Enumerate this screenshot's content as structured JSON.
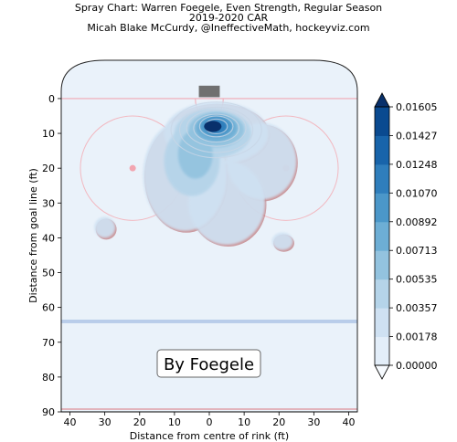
{
  "titles": {
    "line1": "Spray Chart: Warren Foegele, Even Strength, Regular Season",
    "line2": "2019-2020 CAR",
    "line3": "Micah Blake McCurdy, @IneffectiveMath, hockeyviz.com"
  },
  "chart_data": {
    "type": "heatmap",
    "xlabel": "Distance from centre of rink (ft)",
    "ylabel": "Distance from goal line (ft)",
    "xlim": [
      -42.5,
      42.5
    ],
    "ylim": [
      -11,
      90
    ],
    "x_ticks": [
      -40,
      -30,
      -20,
      -10,
      0,
      10,
      20,
      30,
      40
    ],
    "x_tick_labels": [
      "40",
      "30",
      "20",
      "10",
      "0",
      "10",
      "20",
      "30",
      "40"
    ],
    "y_ticks": [
      0,
      10,
      20,
      30,
      40,
      50,
      60,
      70,
      80,
      90
    ],
    "y_tick_labels": [
      "0",
      "10",
      "20",
      "30",
      "40",
      "50",
      "60",
      "70",
      "80",
      "90"
    ],
    "colorbar": {
      "ticks": [
        0.0,
        0.00178,
        0.00357,
        0.00535,
        0.00713,
        0.00892,
        0.0107,
        0.01248,
        0.01427,
        0.01605
      ],
      "tick_labels": [
        "0.00000",
        "0.00178",
        "0.00357",
        "0.00535",
        "0.00713",
        "0.00892",
        "0.01070",
        "0.01248",
        "0.01427",
        "0.01605"
      ],
      "colors": [
        "#f7fbff",
        "#e3eef9",
        "#cfe1f2",
        "#b5d4e9",
        "#93c3df",
        "#6daed5",
        "#4b97c9",
        "#2f7ebc",
        "#1864aa",
        "#0a4a90",
        "#08306b"
      ]
    },
    "annotation": "By Foegele",
    "hotspot": {
      "x": 1,
      "y": 8,
      "peak_density": 0.01605
    },
    "density_blobs": [
      {
        "x": 2,
        "y": 10,
        "rx": 15,
        "ry": 9,
        "level": 1
      },
      {
        "x": -7,
        "y": 22,
        "rx": 12,
        "ry": 16,
        "level": 1
      },
      {
        "x": 15,
        "y": 18,
        "rx": 10,
        "ry": 11,
        "level": 1
      },
      {
        "x": 5,
        "y": 30,
        "rx": 11,
        "ry": 12,
        "level": 1
      },
      {
        "x": 1,
        "y": 10,
        "rx": 11,
        "ry": 7,
        "level": 2
      },
      {
        "x": -5,
        "y": 18,
        "rx": 8,
        "ry": 10,
        "level": 2
      },
      {
        "x": 2,
        "y": 9,
        "rx": 8,
        "ry": 5,
        "level": 3
      },
      {
        "x": -4,
        "y": 16,
        "rx": 5,
        "ry": 7,
        "level": 3
      },
      {
        "x": 2,
        "y": 8.5,
        "rx": 6,
        "ry": 4,
        "level": 4
      },
      {
        "x": 2,
        "y": 8,
        "rx": 4.5,
        "ry": 3,
        "level": 5
      },
      {
        "x": 2,
        "y": 8,
        "rx": 3,
        "ry": 2.2,
        "level": 6
      },
      {
        "x": -30,
        "y": 37,
        "rx": 3,
        "ry": 3,
        "level": 1
      },
      {
        "x": 21,
        "y": 41,
        "rx": 3,
        "ry": 2.5,
        "level": 1
      }
    ],
    "contour_lines": [
      {
        "x": 2,
        "y": 9,
        "rx": 13,
        "ry": 8
      },
      {
        "x": 2,
        "y": 9,
        "rx": 10.5,
        "ry": 6.5
      },
      {
        "x": 2,
        "y": 8.5,
        "rx": 8.5,
        "ry": 5.2
      },
      {
        "x": 2,
        "y": 8.5,
        "rx": 6.5,
        "ry": 4
      },
      {
        "x": 2,
        "y": 8,
        "rx": 4.8,
        "ry": 3
      },
      {
        "x": 2,
        "y": 8,
        "rx": 3.2,
        "ry": 2.1
      }
    ]
  }
}
